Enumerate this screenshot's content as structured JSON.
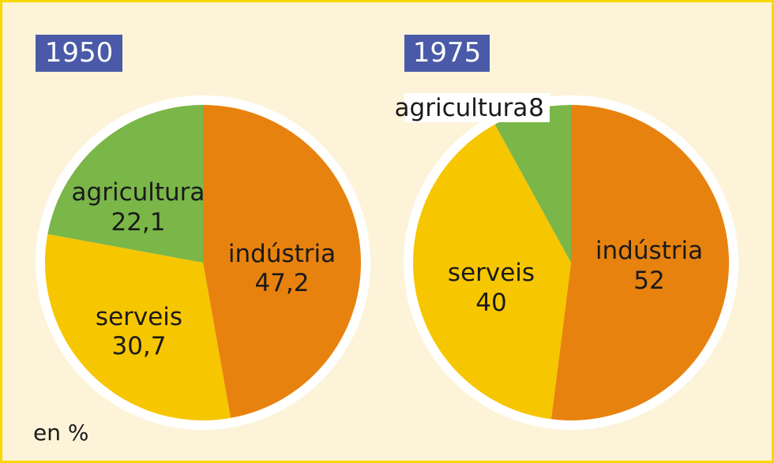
{
  "chart_data": [
    {
      "type": "pie",
      "title": "1950",
      "start": "top, clockwise",
      "slices": [
        {
          "label": "indústria",
          "value": 47.2,
          "display": "47,2",
          "color": "#e8820e"
        },
        {
          "label": "serveis",
          "value": 30.7,
          "display": "30,7",
          "color": "#f6c600"
        },
        {
          "label": "agricultura",
          "value": 22.1,
          "display": "22,1",
          "color": "#7ab648"
        }
      ]
    },
    {
      "type": "pie",
      "title": "1975",
      "start": "top, clockwise",
      "slices": [
        {
          "label": "indústria",
          "value": 52,
          "display": "52",
          "color": "#e8820e"
        },
        {
          "label": "serveis",
          "value": 40,
          "display": "40",
          "color": "#f6c600"
        },
        {
          "label": "agricultura",
          "value": 8,
          "display": "8",
          "color": "#7ab648"
        }
      ]
    }
  ],
  "unit": "en %"
}
